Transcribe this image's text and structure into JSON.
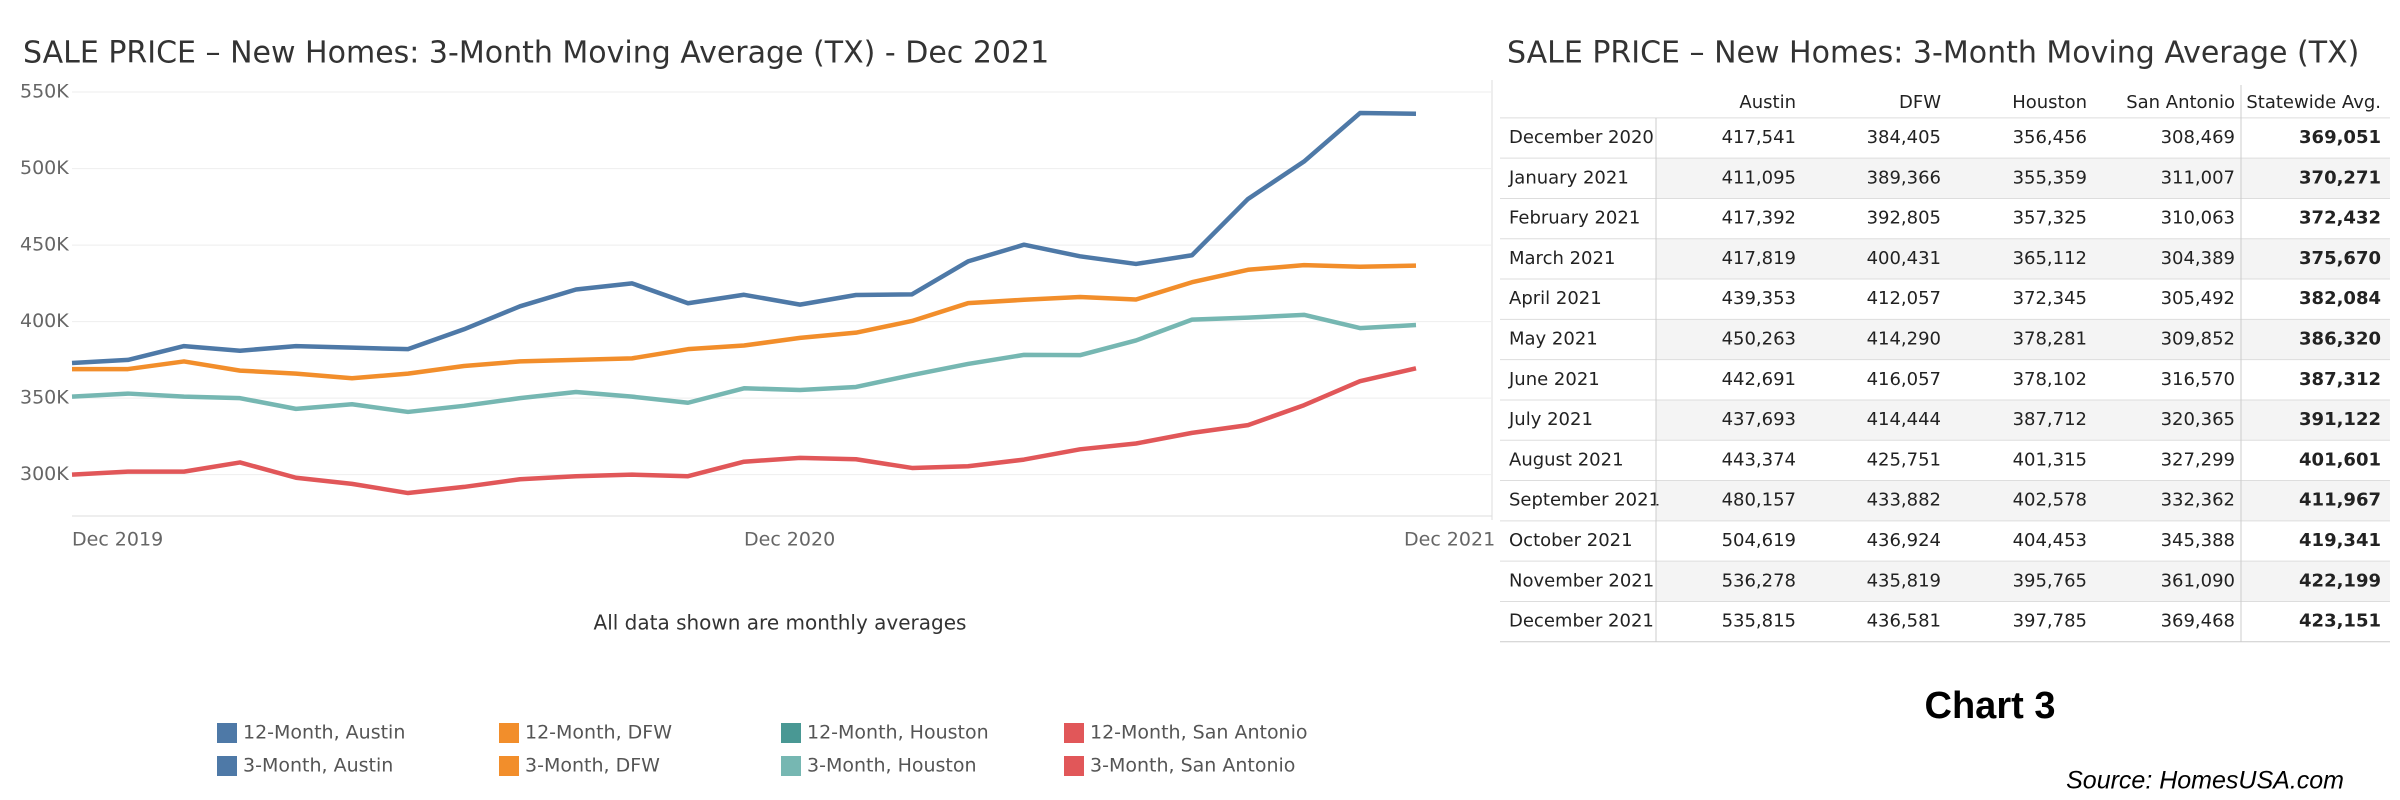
{
  "chart_data": {
    "type": "line",
    "title": "SALE PRICE – New Homes: 3-Month Moving Average (TX)  - Dec 2021",
    "note": "All data shown are monthly averages",
    "categories": [
      "Dec 2019",
      null,
      null,
      null,
      null,
      null,
      null,
      null,
      null,
      null,
      null,
      null,
      "Dec 2020",
      null,
      null,
      null,
      null,
      null,
      null,
      null,
      null,
      null,
      null,
      null,
      "Dec 2021"
    ],
    "ylim": [
      273000,
      552000
    ],
    "yticks": [
      {
        "value": 300000,
        "label": "300K"
      },
      {
        "value": 350000,
        "label": "350K"
      },
      {
        "value": 400000,
        "label": "400K"
      },
      {
        "value": 450000,
        "label": "450K"
      },
      {
        "value": 500000,
        "label": "500K"
      },
      {
        "value": 550000,
        "label": "550K"
      }
    ],
    "grid": true,
    "series": [
      {
        "name": "12-Month, Austin",
        "color": "#4e79a7",
        "values": [
          null,
          null,
          null,
          null,
          null,
          null,
          null,
          null,
          null,
          null,
          null,
          null,
          null,
          null,
          null,
          null,
          null,
          null,
          null,
          null,
          null,
          null,
          null,
          null,
          null
        ]
      },
      {
        "name": "3-Month, Austin",
        "color": "#4e79a7",
        "values": [
          373000,
          375000,
          384000,
          381000,
          384000,
          383000,
          382000,
          395000,
          410000,
          421000,
          425000,
          412000,
          417541,
          411095,
          417392,
          417819,
          439353,
          450263,
          442691,
          437693,
          443374,
          480157,
          504619,
          536278,
          535815
        ]
      },
      {
        "name": "12-Month, DFW",
        "color": "#f28e2b",
        "values": [
          null,
          null,
          null,
          null,
          null,
          null,
          null,
          null,
          null,
          null,
          null,
          null,
          null,
          null,
          null,
          null,
          null,
          null,
          null,
          null,
          null,
          null,
          null,
          null,
          null
        ]
      },
      {
        "name": "3-Month, DFW",
        "color": "#f28e2b",
        "values": [
          369000,
          369000,
          374000,
          368000,
          366000,
          363000,
          366000,
          371000,
          374000,
          375000,
          376000,
          382000,
          384405,
          389366,
          392805,
          400431,
          412057,
          414290,
          416057,
          414444,
          425751,
          433882,
          436924,
          435819,
          436581
        ]
      },
      {
        "name": "12-Month, Houston",
        "color": "#499894",
        "values": [
          null,
          null,
          null,
          null,
          null,
          null,
          null,
          null,
          null,
          null,
          null,
          null,
          null,
          null,
          null,
          null,
          null,
          null,
          null,
          null,
          null,
          null,
          null,
          null,
          null
        ]
      },
      {
        "name": "3-Month, Houston",
        "color": "#76b7b2",
        "values": [
          351000,
          353000,
          351000,
          350000,
          343000,
          346000,
          341000,
          345000,
          350000,
          354000,
          351000,
          347000,
          356456,
          355359,
          357325,
          365112,
          372345,
          378281,
          378102,
          387712,
          401315,
          402578,
          404453,
          395765,
          397785
        ]
      },
      {
        "name": "12-Month, San Antonio",
        "color": "#e15759",
        "values": [
          null,
          null,
          null,
          null,
          null,
          null,
          null,
          null,
          null,
          null,
          null,
          null,
          null,
          null,
          null,
          null,
          null,
          null,
          null,
          null,
          null,
          null,
          null,
          null,
          null
        ]
      },
      {
        "name": "3-Month, San Antonio",
        "color": "#e15759",
        "values": [
          300000,
          302000,
          302000,
          308000,
          298000,
          294000,
          288000,
          292000,
          297000,
          299000,
          300000,
          299000,
          308469,
          311007,
          310063,
          304389,
          305492,
          309852,
          316570,
          320365,
          327299,
          332362,
          345388,
          361090,
          369468
        ]
      }
    ]
  },
  "table": {
    "title": "SALE PRICE – New Homes: 3-Month Moving Average (TX)",
    "columns": [
      "Austin",
      "DFW",
      "Houston",
      "San Antonio",
      "Statewide Avg."
    ],
    "rows": [
      {
        "label": "December 2020",
        "cells": [
          "417,541",
          "384,405",
          "356,456",
          "308,469",
          "369,051"
        ]
      },
      {
        "label": "January 2021",
        "cells": [
          "411,095",
          "389,366",
          "355,359",
          "311,007",
          "370,271"
        ]
      },
      {
        "label": "February 2021",
        "cells": [
          "417,392",
          "392,805",
          "357,325",
          "310,063",
          "372,432"
        ]
      },
      {
        "label": "March 2021",
        "cells": [
          "417,819",
          "400,431",
          "365,112",
          "304,389",
          "375,670"
        ]
      },
      {
        "label": "April 2021",
        "cells": [
          "439,353",
          "412,057",
          "372,345",
          "305,492",
          "382,084"
        ]
      },
      {
        "label": "May 2021",
        "cells": [
          "450,263",
          "414,290",
          "378,281",
          "309,852",
          "386,320"
        ]
      },
      {
        "label": "June 2021",
        "cells": [
          "442,691",
          "416,057",
          "378,102",
          "316,570",
          "387,312"
        ]
      },
      {
        "label": "July 2021",
        "cells": [
          "437,693",
          "414,444",
          "387,712",
          "320,365",
          "391,122"
        ]
      },
      {
        "label": "August 2021",
        "cells": [
          "443,374",
          "425,751",
          "401,315",
          "327,299",
          "401,601"
        ]
      },
      {
        "label": "September 2021",
        "cells": [
          "480,157",
          "433,882",
          "402,578",
          "332,362",
          "411,967"
        ]
      },
      {
        "label": "October 2021",
        "cells": [
          "504,619",
          "436,924",
          "404,453",
          "345,388",
          "419,341"
        ]
      },
      {
        "label": "November 2021",
        "cells": [
          "536,278",
          "435,819",
          "395,765",
          "361,090",
          "422,199"
        ]
      },
      {
        "label": "December 2021",
        "cells": [
          "535,815",
          "436,581",
          "397,785",
          "369,468",
          "423,151"
        ]
      }
    ]
  },
  "footer": {
    "chart_label": "Chart 3",
    "source": "Source: HomesUSA.com"
  }
}
